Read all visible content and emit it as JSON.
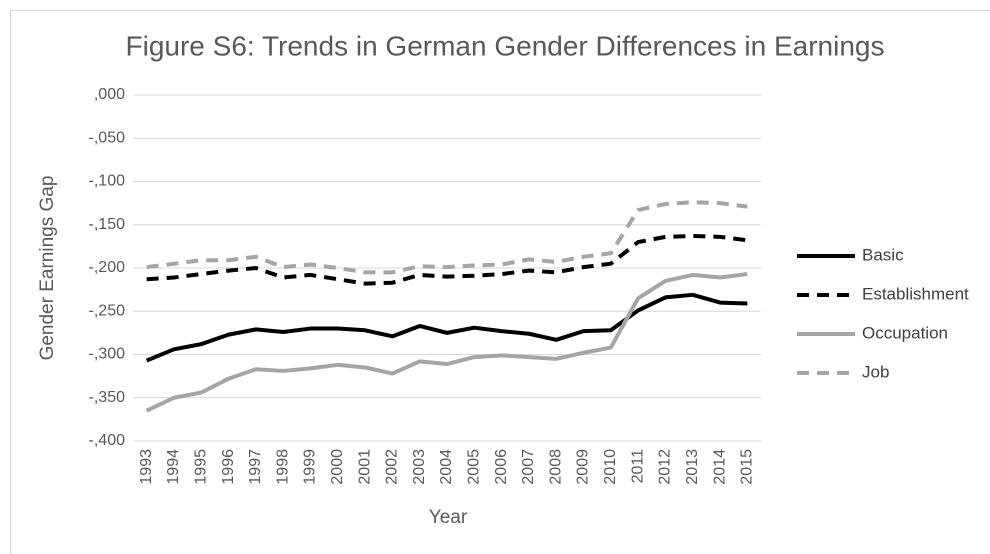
{
  "chart_data": {
    "type": "line",
    "title": "Figure S6: Trends in German Gender Differences in Earnings",
    "x_label": "Year",
    "y_label": "Gender Earnings Gap",
    "categories": [
      "1993",
      "1994",
      "1995",
      "1996",
      "1997",
      "1998",
      "1999",
      "2000",
      "2001",
      "2002",
      "2003",
      "2004",
      "2005",
      "2006",
      "2007",
      "2008",
      "2009",
      "2010",
      "2011",
      "2012",
      "2013",
      "2014",
      "2015"
    ],
    "series": [
      {
        "name": "Basic",
        "color": "#000000",
        "dash": false,
        "values": [
          -0.307,
          -0.294,
          -0.288,
          -0.277,
          -0.271,
          -0.274,
          -0.27,
          -0.27,
          -0.272,
          -0.279,
          -0.267,
          -0.275,
          -0.269,
          -0.273,
          -0.276,
          -0.283,
          -0.273,
          -0.272,
          -0.249,
          -0.234,
          -0.231,
          -0.24,
          -0.241
        ]
      },
      {
        "name": "Establishment",
        "color": "#000000",
        "dash": true,
        "values": [
          -0.213,
          -0.211,
          -0.207,
          -0.203,
          -0.2,
          -0.211,
          -0.208,
          -0.213,
          -0.218,
          -0.217,
          -0.208,
          -0.21,
          -0.209,
          -0.207,
          -0.203,
          -0.205,
          -0.199,
          -0.195,
          -0.17,
          -0.164,
          -0.163,
          -0.164,
          -0.168
        ]
      },
      {
        "name": "Occupation",
        "color": "#a5a5a5",
        "dash": false,
        "values": [
          -0.365,
          -0.35,
          -0.344,
          -0.328,
          -0.317,
          -0.319,
          -0.316,
          -0.312,
          -0.315,
          -0.322,
          -0.308,
          -0.311,
          -0.303,
          -0.301,
          -0.303,
          -0.305,
          -0.298,
          -0.292,
          -0.235,
          -0.215,
          -0.208,
          -0.211,
          -0.207
        ]
      },
      {
        "name": "Job",
        "color": "#a5a5a5",
        "dash": true,
        "values": [
          -0.199,
          -0.195,
          -0.191,
          -0.191,
          -0.187,
          -0.199,
          -0.196,
          -0.2,
          -0.205,
          -0.205,
          -0.198,
          -0.199,
          -0.197,
          -0.196,
          -0.19,
          -0.193,
          -0.187,
          -0.183,
          -0.133,
          -0.126,
          -0.124,
          -0.125,
          -0.129
        ]
      }
    ],
    "ylim": [
      -0.4,
      0
    ],
    "yticks": [
      {
        "value": 0,
        "label": ",000"
      },
      {
        "value": -0.05,
        "label": "-,050"
      },
      {
        "value": -0.1,
        "label": "-,100"
      },
      {
        "value": -0.15,
        "label": "-,150"
      },
      {
        "value": -0.2,
        "label": "-,200"
      },
      {
        "value": -0.25,
        "label": "-,250"
      },
      {
        "value": -0.3,
        "label": "-,300"
      },
      {
        "value": -0.35,
        "label": "-,350"
      },
      {
        "value": -0.4,
        "label": "-,400"
      }
    ],
    "grid": true,
    "legend": "right"
  }
}
